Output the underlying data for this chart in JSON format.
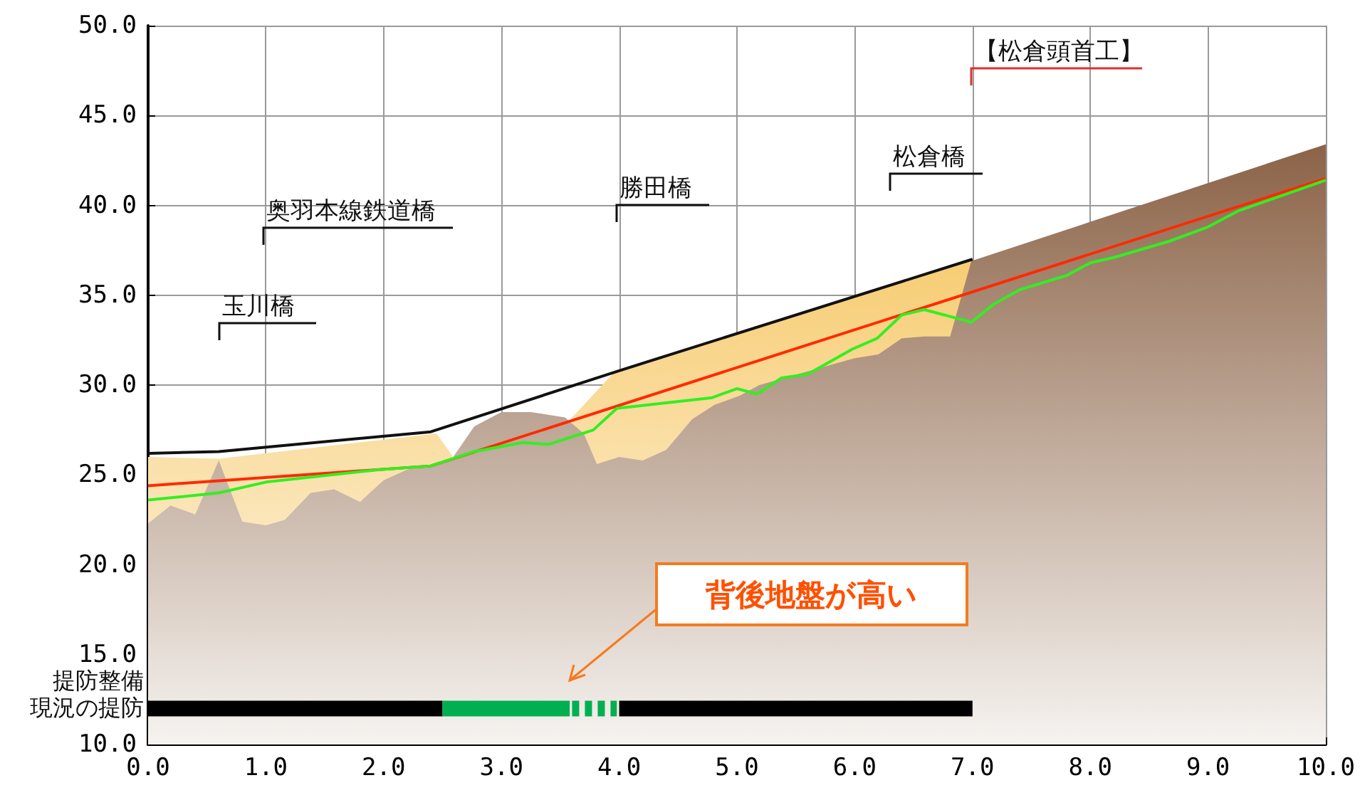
{
  "chart_data": {
    "type": "line",
    "xlim": [
      0,
      10
    ],
    "ylim": [
      10,
      50
    ],
    "xticks": [
      {
        "value": 0,
        "label": "0.0"
      },
      {
        "value": 1,
        "label": "1.0"
      },
      {
        "value": 2,
        "label": "2.0"
      },
      {
        "value": 3,
        "label": "3.0"
      },
      {
        "value": 4,
        "label": "4.0"
      },
      {
        "value": 5,
        "label": "5.0"
      },
      {
        "value": 6,
        "label": "6.0"
      },
      {
        "value": 7,
        "label": "7.0"
      },
      {
        "value": 8,
        "label": "8.0"
      },
      {
        "value": 9,
        "label": "9.0"
      },
      {
        "value": 10,
        "label": "10.0"
      }
    ],
    "yticks": [
      {
        "value": 10,
        "label": "10.0"
      },
      {
        "value": 15,
        "label": "15.0"
      },
      {
        "value": 20,
        "label": "20.0"
      },
      {
        "value": 25,
        "label": "25.0"
      },
      {
        "value": 30,
        "label": "30.0"
      },
      {
        "value": 35,
        "label": "35.0"
      },
      {
        "value": 40,
        "label": "40.0"
      },
      {
        "value": 45,
        "label": "45.0"
      },
      {
        "value": 50,
        "label": "50.0"
      }
    ],
    "grid": true,
    "marker": "none",
    "series": [
      {
        "type": "area",
        "color": "#f7cd74",
        "x": [
          0,
          0.6,
          2.45,
          2.58,
          3.0,
          3.6,
          3.97,
          7.0
        ],
        "values": [
          26.0,
          25.9,
          27.3,
          26.1,
          null,
          28.2,
          30.8,
          37.0
        ]
      },
      {
        "type": "area",
        "color": "#8b6347",
        "x": [
          0,
          0.19,
          0.4,
          0.6,
          0.8,
          1.0,
          1.16,
          1.38,
          1.58,
          1.8,
          2.0,
          2.2,
          2.4,
          2.58,
          2.77,
          3.0,
          3.25,
          3.54,
          3.7,
          3.81,
          4.0,
          4.2,
          4.4,
          4.62,
          4.81,
          5.02,
          5.19,
          5.57,
          6.0,
          6.2,
          6.4,
          6.59,
          6.81,
          6.99,
          10
        ],
        "values": [
          22.3,
          23.3,
          22.8,
          25.8,
          22.4,
          22.2,
          22.5,
          24.0,
          24.2,
          23.5,
          24.7,
          25.3,
          25.5,
          25.9,
          27.7,
          28.5,
          28.5,
          28.2,
          27.3,
          25.6,
          26.0,
          25.8,
          26.4,
          28.1,
          28.9,
          29.4,
          30.0,
          30.7,
          31.5,
          31.7,
          32.6,
          32.7,
          32.7,
          36.9,
          43.4
        ]
      },
      {
        "color": "#ff2a00",
        "x": [
          0,
          2.4,
          10
        ],
        "values": [
          24.4,
          25.5,
          41.5
        ]
      },
      {
        "type": "line",
        "color": "#33ee22",
        "x": [
          0,
          0.6,
          1.0,
          1.97,
          2.4,
          2.77,
          3.18,
          3.4,
          3.78,
          3.98,
          4.79,
          5.0,
          5.17,
          5.38,
          5.6,
          5.98,
          6.19,
          6.4,
          6.59,
          6.99,
          7.18,
          7.4,
          7.8,
          8.0,
          8.2,
          8.67,
          9.0,
          9.26,
          10
        ],
        "values": [
          23.6,
          24.0,
          24.6,
          25.3,
          25.5,
          26.3,
          26.8,
          26.7,
          27.5,
          28.7,
          29.3,
          29.8,
          29.5,
          30.4,
          30.6,
          32.0,
          32.6,
          33.9,
          34.2,
          33.5,
          34.5,
          35.3,
          36.1,
          36.8,
          37.1,
          38.0,
          38.8,
          39.7,
          41.4
        ]
      },
      {
        "type": "line",
        "color": "#111111",
        "x": [
          0,
          0.6,
          2.4,
          4.0,
          7.0
        ],
        "values": [
          26.2,
          26.3,
          27.4,
          30.8,
          37.0
        ]
      },
      {
        "type": "line",
        "color": "#000000",
        "x": [
          0,
          2.5
        ],
        "values": [
          12,
          12
        ]
      },
      {
        "type": "line",
        "color": "#00b050",
        "x": [
          2.5,
          3.58
        ],
        "values": [
          12,
          12
        ]
      },
      {
        "type": "line",
        "color": "#00b050",
        "line_style": "dashed",
        "x": [
          3.6,
          3.98
        ],
        "values": [
          12,
          12
        ]
      },
      {
        "type": "line",
        "color": "#000000",
        "x": [
          4.0,
          7.0
        ],
        "values": [
          12,
          12
        ]
      }
    ],
    "annotations": [
      "玉川橋",
      "奥羽本線鉄道橋",
      "勝田橋",
      "松倉橋",
      "【松倉頭首工】",
      "提防整備",
      "現況の提防",
      "背後地盤が高い"
    ]
  }
}
